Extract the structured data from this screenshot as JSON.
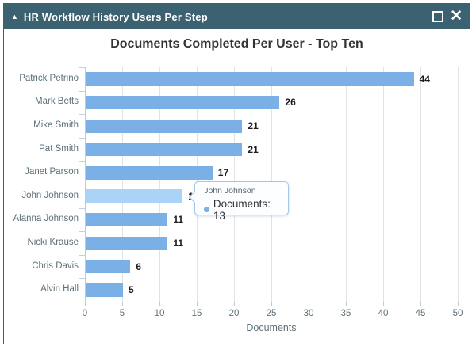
{
  "window": {
    "title": "HR Workflow History Users Per Step",
    "collapse_glyph": "▲",
    "close_glyph": "✕",
    "titlebar_color": "#3c6272"
  },
  "chart_data": {
    "type": "bar",
    "orientation": "horizontal",
    "title": "Documents Completed Per User - Top Ten",
    "categories": [
      "Patrick Petrino",
      "Mark Betts",
      "Mike Smith",
      "Pat Smith",
      "Janet Parson",
      "John Johnson",
      "Alanna Johnson",
      "Nicki Krause",
      "Chris Davis",
      "Alvin Hall"
    ],
    "values": [
      44,
      26,
      21,
      21,
      17,
      13,
      11,
      11,
      6,
      5
    ],
    "xlabel": "Documents",
    "xlim": [
      0,
      50
    ],
    "xticks": [
      0,
      5,
      10,
      15,
      20,
      25,
      30,
      35,
      40,
      45,
      50
    ],
    "grid": true,
    "legend": "none",
    "bar_color": "#7ab0e6",
    "highlight_color": "#a9d3f7",
    "highlighted_index": 5
  },
  "tooltip": {
    "name": "John Johnson",
    "label": "Documents: 13",
    "bullet_color": "#7ab0e6"
  }
}
